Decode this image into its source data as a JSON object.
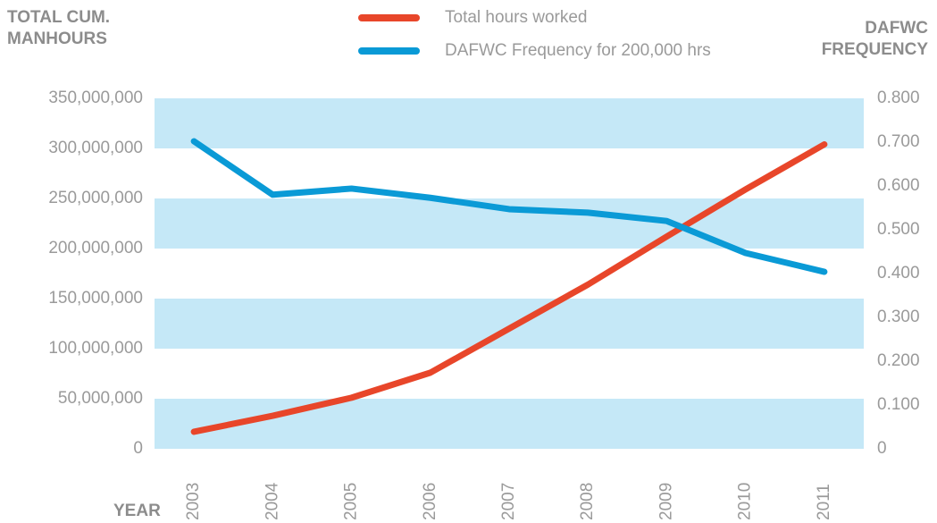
{
  "chart_data": {
    "type": "line",
    "y_label": "TOTAL CUM. MANHOURS",
    "y2_label": "DAFWC FREQUENCY",
    "x_label": "YEAR",
    "categories": [
      "2003",
      "2004",
      "2005",
      "2006",
      "2007",
      "2008",
      "2009",
      "2010",
      "2011"
    ],
    "series": [
      {
        "name": "Total hours worked",
        "color": "#e8462a",
        "values": [
          17000000,
          33000000,
          51000000,
          76000000,
          120000000,
          164000000,
          212000000,
          259000000,
          304000000
        ]
      },
      {
        "name": "DAFWC Frequency for 200,000 hrs",
        "color": "#0a9ad6",
        "axis": "y2",
        "values": [
          0.702,
          0.58,
          0.594,
          0.573,
          0.547,
          0.539,
          0.52,
          0.447,
          0.404
        ]
      }
    ],
    "ylim": [
      0,
      350000000
    ],
    "yticks": [
      0,
      {
        "value": 50000000,
        "label": "50,000,000"
      },
      {
        "value": 100000000,
        "label": "100,000,000"
      },
      {
        "value": 150000000,
        "label": "150,000,000"
      },
      {
        "value": 200000000,
        "label": "200,000,000"
      },
      {
        "value": 250000000,
        "label": "250,000,000"
      },
      {
        "value": 300000000,
        "label": "300,000,000"
      },
      {
        "value": 350000000,
        "label": "350,000,000"
      }
    ],
    "y2lim": [
      0,
      0.8
    ],
    "y2ticks": [
      0,
      {
        "value": 0.1,
        "label": "0.100"
      },
      {
        "value": 0.2,
        "label": "0.200"
      },
      {
        "value": 0.3,
        "label": "0.300"
      },
      {
        "value": 0.4,
        "label": "0.400"
      },
      {
        "value": 0.5,
        "label": "0.500"
      },
      {
        "value": 0.6,
        "label": "0.600"
      },
      {
        "value": 0.7,
        "label": "0.700"
      },
      {
        "value": 0.8,
        "label": "0.800"
      }
    ],
    "grid": true,
    "grid_color": "#c5e8f7",
    "legend": "top"
  }
}
